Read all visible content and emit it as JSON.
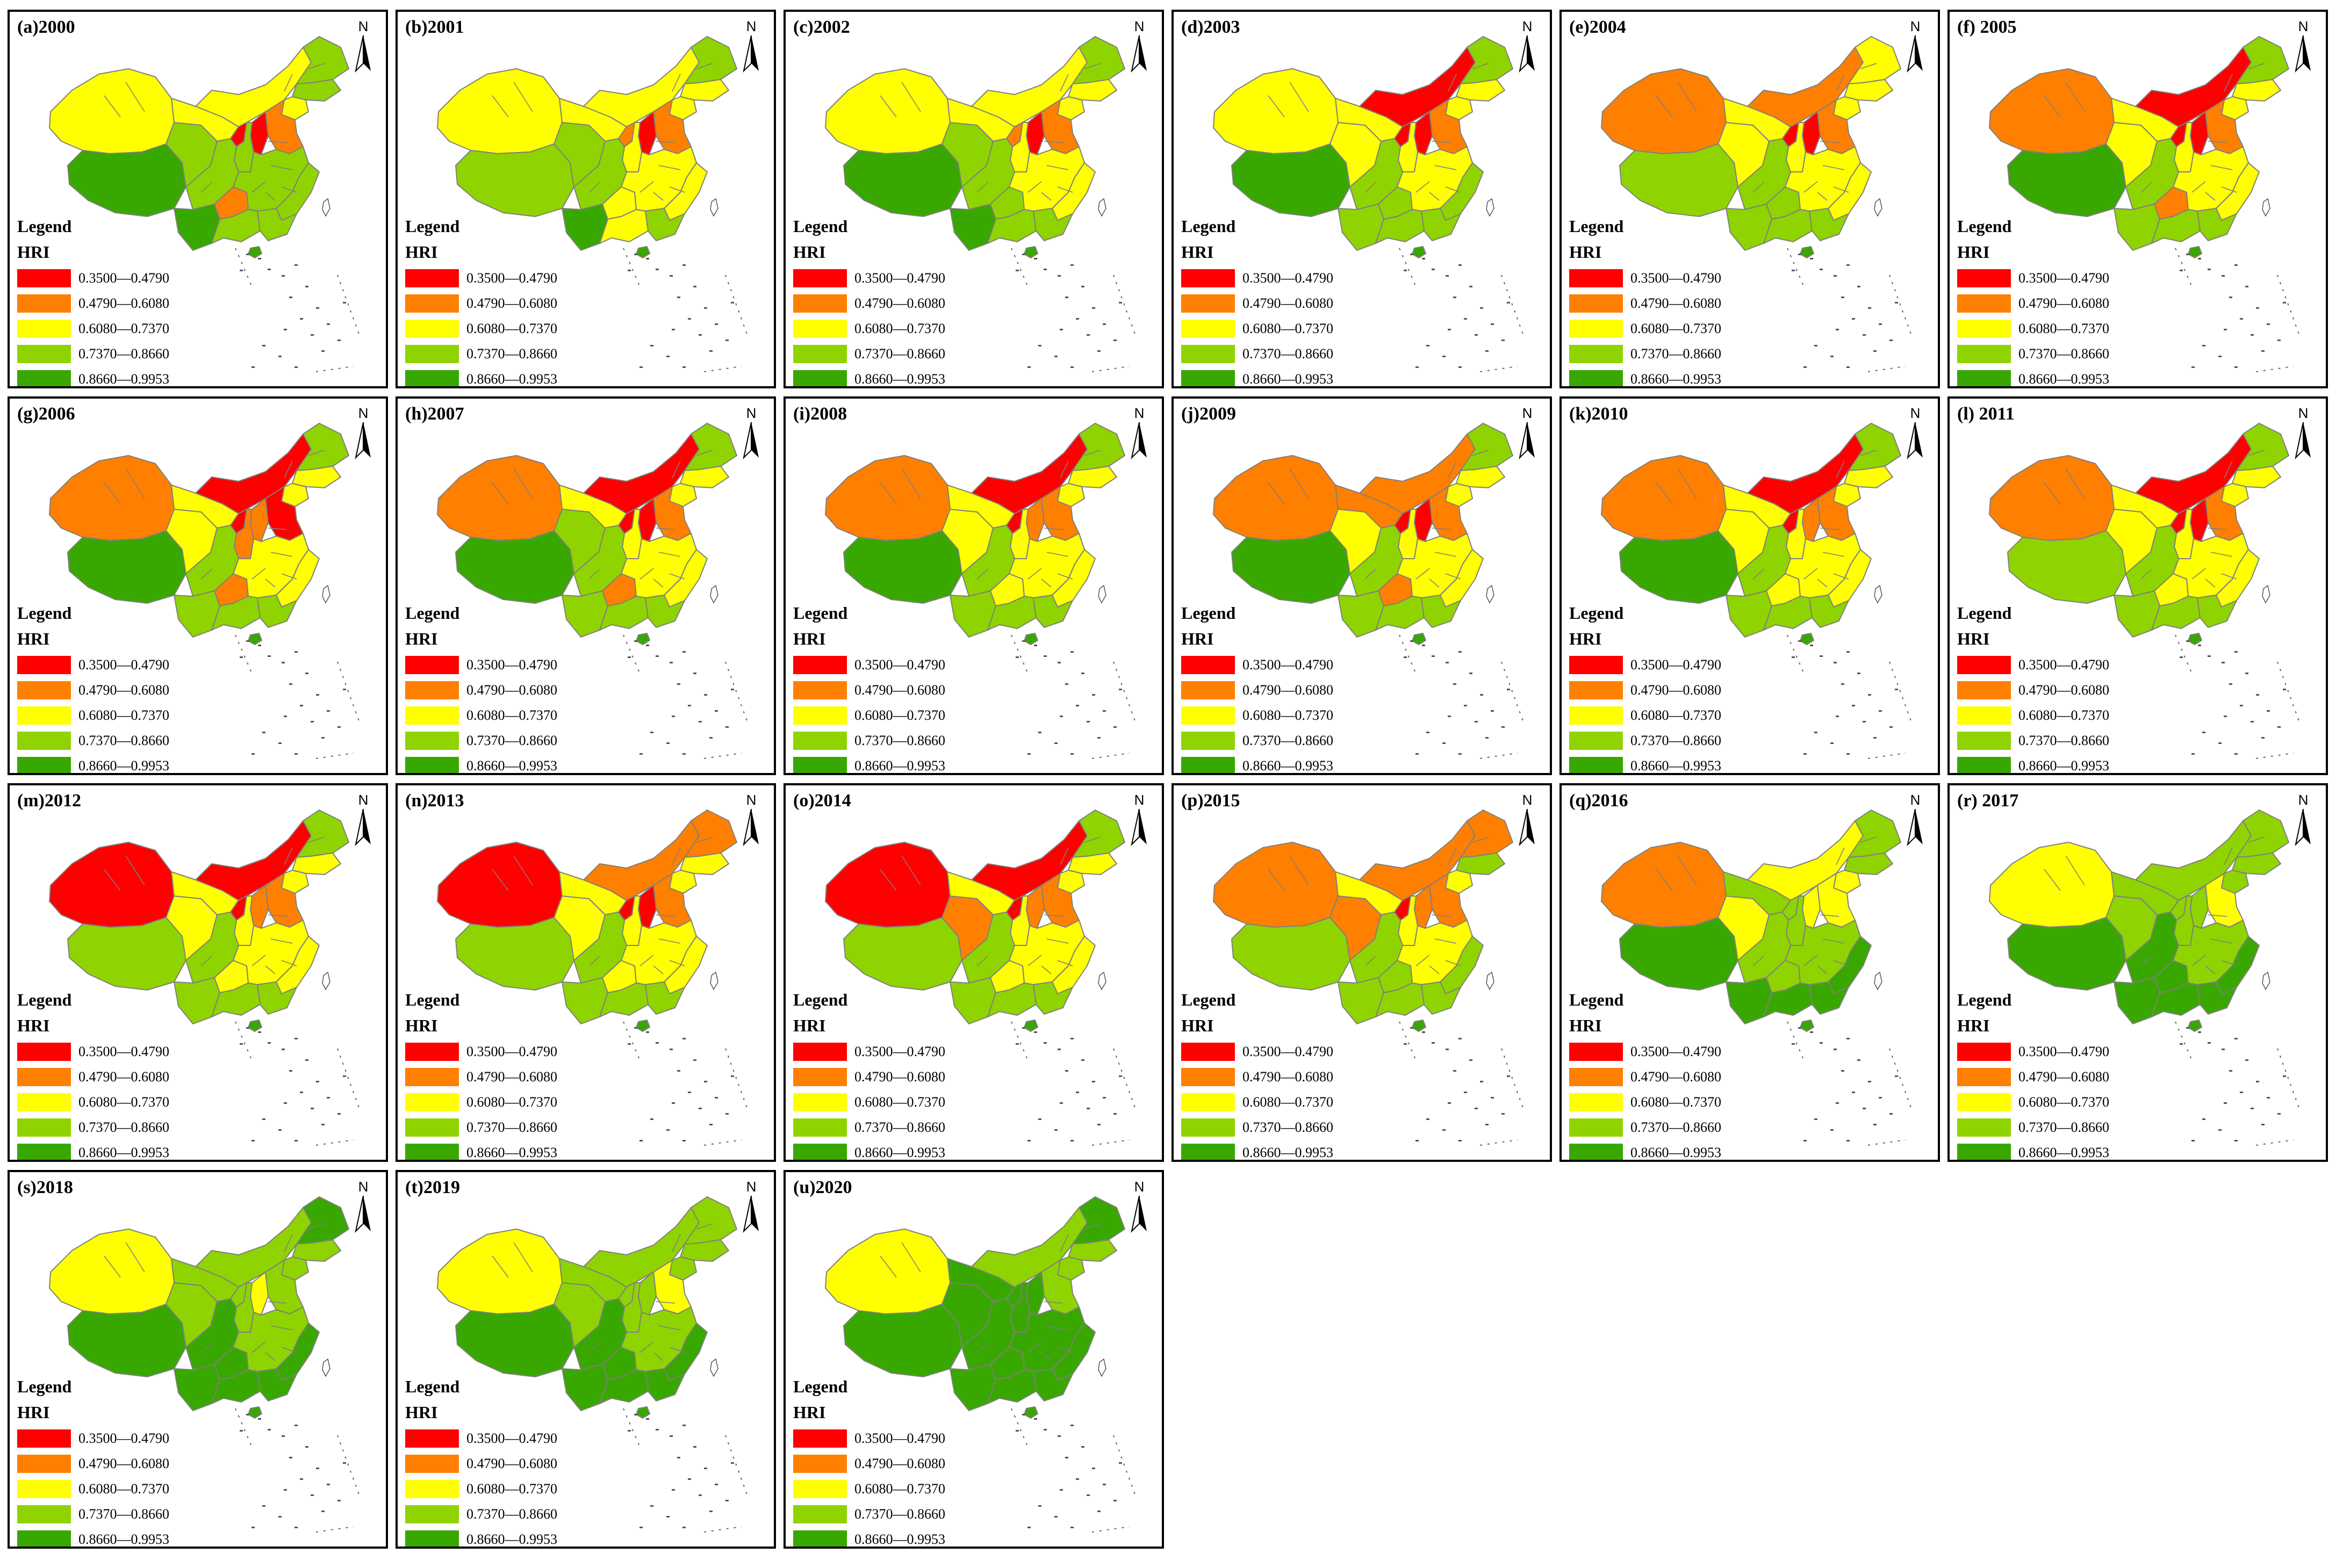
{
  "figure": {
    "legend_title": "Legend",
    "legend_subtitle": "HRI",
    "north_label": "N",
    "classes": [
      {
        "range": "0.3500—0.4790",
        "color": "#ff0000"
      },
      {
        "range": "0.4790—0.6080",
        "color": "#ff8000"
      },
      {
        "range": "0.6080—0.7370",
        "color": "#ffff00"
      },
      {
        "range": "0.7370—0.8660",
        "color": "#8fd400"
      },
      {
        "range": "0.8660—0.9953",
        "color": "#38a800"
      }
    ],
    "border_color": "#7f7f7f",
    "panels": [
      {
        "label": "(a)2000",
        "regions": {
          "xinjiang": 2,
          "tibet": 4,
          "qinghai": 3,
          "gansu": 2,
          "inner_mongolia": 2,
          "heilongjiang": 3,
          "jilin": 3,
          "liaoning": 2,
          "north_china": 1,
          "shanxi": 0,
          "ningxia": 0,
          "shaanxi": 3,
          "sichuan": 3,
          "yunnan": 4,
          "guizhou": 1,
          "central": 3,
          "southeast": 3,
          "guangxi": 3,
          "guangdong": 3,
          "hainan": 4
        }
      },
      {
        "label": "(b)2001",
        "regions": {
          "xinjiang": 2,
          "tibet": 3,
          "qinghai": 3,
          "gansu": 2,
          "inner_mongolia": 2,
          "heilongjiang": 3,
          "jilin": 2,
          "liaoning": 2,
          "north_china": 1,
          "shanxi": 0,
          "ningxia": 1,
          "shaanxi": 2,
          "sichuan": 3,
          "yunnan": 4,
          "guizhou": 2,
          "central": 2,
          "southeast": 2,
          "guangxi": 2,
          "guangdong": 3,
          "hainan": 4
        }
      },
      {
        "label": "(c)2002",
        "regions": {
          "xinjiang": 2,
          "tibet": 4,
          "qinghai": 3,
          "gansu": 2,
          "inner_mongolia": 2,
          "heilongjiang": 3,
          "jilin": 2,
          "liaoning": 2,
          "north_china": 1,
          "shanxi": 0,
          "ningxia": 1,
          "shaanxi": 2,
          "sichuan": 3,
          "yunnan": 4,
          "guizhou": 3,
          "central": 2,
          "southeast": 2,
          "guangxi": 3,
          "guangdong": 3,
          "hainan": 4
        }
      },
      {
        "label": "(d)2003",
        "regions": {
          "xinjiang": 2,
          "tibet": 4,
          "qinghai": 2,
          "gansu": 2,
          "inner_mongolia": 0,
          "heilongjiang": 3,
          "jilin": 2,
          "liaoning": 2,
          "north_china": 1,
          "shanxi": 0,
          "ningxia": 0,
          "shaanxi": 2,
          "sichuan": 3,
          "yunnan": 3,
          "guizhou": 3,
          "central": 2,
          "southeast": 3,
          "guangxi": 3,
          "guangdong": 3,
          "hainan": 4
        }
      },
      {
        "label": "(e)2004",
        "regions": {
          "xinjiang": 1,
          "tibet": 3,
          "qinghai": 2,
          "gansu": 2,
          "inner_mongolia": 1,
          "heilongjiang": 2,
          "jilin": 2,
          "liaoning": 2,
          "north_china": 1,
          "shanxi": 0,
          "ningxia": 0,
          "shaanxi": 2,
          "sichuan": 3,
          "yunnan": 3,
          "guizhou": 3,
          "central": 2,
          "southeast": 2,
          "guangxi": 3,
          "guangdong": 3,
          "hainan": 4
        }
      },
      {
        "label": "(f) 2005",
        "regions": {
          "xinjiang": 1,
          "tibet": 4,
          "qinghai": 2,
          "gansu": 2,
          "inner_mongolia": 0,
          "heilongjiang": 3,
          "jilin": 2,
          "liaoning": 2,
          "north_china": 1,
          "shanxi": 0,
          "ningxia": 0,
          "shaanxi": 2,
          "sichuan": 3,
          "yunnan": 3,
          "guizhou": 1,
          "central": 2,
          "southeast": 2,
          "guangxi": 3,
          "guangdong": 3,
          "hainan": 4
        }
      },
      {
        "label": "(g)2006",
        "regions": {
          "xinjiang": 1,
          "tibet": 4,
          "qinghai": 2,
          "gansu": 2,
          "inner_mongolia": 0,
          "heilongjiang": 3,
          "jilin": 2,
          "liaoning": 2,
          "north_china": 0,
          "shanxi": 1,
          "ningxia": 0,
          "shaanxi": 1,
          "sichuan": 3,
          "yunnan": 3,
          "guizhou": 1,
          "central": 2,
          "southeast": 2,
          "guangxi": 3,
          "guangdong": 3,
          "hainan": 4
        }
      },
      {
        "label": "(h)2007",
        "regions": {
          "xinjiang": 1,
          "tibet": 4,
          "qinghai": 3,
          "gansu": 2,
          "inner_mongolia": 0,
          "heilongjiang": 3,
          "jilin": 2,
          "liaoning": 2,
          "north_china": 1,
          "shanxi": 0,
          "ningxia": 0,
          "shaanxi": 2,
          "sichuan": 3,
          "yunnan": 3,
          "guizhou": 1,
          "central": 2,
          "southeast": 2,
          "guangxi": 3,
          "guangdong": 3,
          "hainan": 4
        }
      },
      {
        "label": "(i)2008",
        "regions": {
          "xinjiang": 1,
          "tibet": 4,
          "qinghai": 2,
          "gansu": 2,
          "inner_mongolia": 0,
          "heilongjiang": 3,
          "jilin": 2,
          "liaoning": 2,
          "north_china": 1,
          "shanxi": 1,
          "ningxia": 0,
          "shaanxi": 2,
          "sichuan": 3,
          "yunnan": 3,
          "guizhou": 2,
          "central": 2,
          "southeast": 2,
          "guangxi": 3,
          "guangdong": 3,
          "hainan": 4
        }
      },
      {
        "label": "(j)2009",
        "regions": {
          "xinjiang": 1,
          "tibet": 4,
          "qinghai": 2,
          "gansu": 1,
          "inner_mongolia": 1,
          "heilongjiang": 3,
          "jilin": 2,
          "liaoning": 2,
          "north_china": 1,
          "shanxi": 0,
          "ningxia": 0,
          "shaanxi": 2,
          "sichuan": 3,
          "yunnan": 3,
          "guizhou": 1,
          "central": 2,
          "southeast": 2,
          "guangxi": 3,
          "guangdong": 3,
          "hainan": 4
        }
      },
      {
        "label": "(k)2010",
        "regions": {
          "xinjiang": 1,
          "tibet": 4,
          "qinghai": 2,
          "gansu": 2,
          "inner_mongolia": 0,
          "heilongjiang": 3,
          "jilin": 2,
          "liaoning": 2,
          "north_china": 1,
          "shanxi": 1,
          "ningxia": 0,
          "shaanxi": 2,
          "sichuan": 3,
          "yunnan": 3,
          "guizhou": 2,
          "central": 2,
          "southeast": 2,
          "guangxi": 3,
          "guangdong": 3,
          "hainan": 4
        }
      },
      {
        "label": "(l) 2011",
        "regions": {
          "xinjiang": 1,
          "tibet": 3,
          "qinghai": 2,
          "gansu": 2,
          "inner_mongolia": 0,
          "heilongjiang": 3,
          "jilin": 2,
          "liaoning": 2,
          "north_china": 1,
          "shanxi": 0,
          "ningxia": 0,
          "shaanxi": 2,
          "sichuan": 3,
          "yunnan": 3,
          "guizhou": 2,
          "central": 2,
          "southeast": 2,
          "guangxi": 3,
          "guangdong": 3,
          "hainan": 4
        }
      },
      {
        "label": "(m)2012",
        "regions": {
          "xinjiang": 0,
          "tibet": 3,
          "qinghai": 2,
          "gansu": 2,
          "inner_mongolia": 0,
          "heilongjiang": 3,
          "jilin": 2,
          "liaoning": 2,
          "north_china": 1,
          "shanxi": 1,
          "ningxia": 0,
          "shaanxi": 2,
          "sichuan": 3,
          "yunnan": 3,
          "guizhou": 2,
          "central": 2,
          "southeast": 2,
          "guangxi": 3,
          "guangdong": 3,
          "hainan": 4
        }
      },
      {
        "label": "(n)2013",
        "regions": {
          "xinjiang": 0,
          "tibet": 3,
          "qinghai": 2,
          "gansu": 2,
          "inner_mongolia": 1,
          "heilongjiang": 1,
          "jilin": 2,
          "liaoning": 2,
          "north_china": 1,
          "shanxi": 0,
          "ningxia": 0,
          "shaanxi": 2,
          "sichuan": 3,
          "yunnan": 3,
          "guizhou": 2,
          "central": 2,
          "southeast": 2,
          "guangxi": 3,
          "guangdong": 3,
          "hainan": 4
        }
      },
      {
        "label": "(o)2014",
        "regions": {
          "xinjiang": 0,
          "tibet": 3,
          "qinghai": 1,
          "gansu": 2,
          "inner_mongolia": 0,
          "heilongjiang": 3,
          "jilin": 2,
          "liaoning": 2,
          "north_china": 1,
          "shanxi": 1,
          "ningxia": 0,
          "shaanxi": 2,
          "sichuan": 3,
          "yunnan": 3,
          "guizhou": 2,
          "central": 2,
          "southeast": 2,
          "guangxi": 3,
          "guangdong": 3,
          "hainan": 4
        }
      },
      {
        "label": "(p)2015",
        "regions": {
          "xinjiang": 1,
          "tibet": 3,
          "qinghai": 1,
          "gansu": 2,
          "inner_mongolia": 1,
          "heilongjiang": 1,
          "jilin": 3,
          "liaoning": 2,
          "north_china": 1,
          "shanxi": 1,
          "ningxia": 0,
          "shaanxi": 2,
          "sichuan": 3,
          "yunnan": 3,
          "guizhou": 3,
          "central": 2,
          "southeast": 3,
          "guangxi": 3,
          "guangdong": 3,
          "hainan": 4
        }
      },
      {
        "label": "(q)2016",
        "regions": {
          "xinjiang": 1,
          "tibet": 4,
          "qinghai": 2,
          "gansu": 3,
          "inner_mongolia": 2,
          "heilongjiang": 3,
          "jilin": 3,
          "liaoning": 2,
          "north_china": 2,
          "shanxi": 2,
          "ningxia": 3,
          "shaanxi": 3,
          "sichuan": 3,
          "yunnan": 4,
          "guizhou": 3,
          "central": 3,
          "southeast": 4,
          "guangxi": 4,
          "guangdong": 4,
          "hainan": 4
        }
      },
      {
        "label": "(r) 2017",
        "regions": {
          "xinjiang": 2,
          "tibet": 4,
          "qinghai": 3,
          "gansu": 3,
          "inner_mongolia": 3,
          "heilongjiang": 3,
          "jilin": 3,
          "liaoning": 3,
          "north_china": 2,
          "shanxi": 3,
          "ningxia": 3,
          "shaanxi": 3,
          "sichuan": 4,
          "yunnan": 4,
          "guizhou": 4,
          "central": 3,
          "southeast": 4,
          "guangxi": 4,
          "guangdong": 4,
          "hainan": 4
        }
      },
      {
        "label": "(s)2018",
        "regions": {
          "xinjiang": 2,
          "tibet": 4,
          "qinghai": 3,
          "gansu": 3,
          "inner_mongolia": 3,
          "heilongjiang": 4,
          "jilin": 3,
          "liaoning": 3,
          "north_china": 3,
          "shanxi": 2,
          "ningxia": 3,
          "shaanxi": 3,
          "sichuan": 4,
          "yunnan": 4,
          "guizhou": 4,
          "central": 3,
          "southeast": 4,
          "guangxi": 4,
          "guangdong": 4,
          "hainan": 4
        }
      },
      {
        "label": "(t)2019",
        "regions": {
          "xinjiang": 2,
          "tibet": 4,
          "qinghai": 3,
          "gansu": 3,
          "inner_mongolia": 3,
          "heilongjiang": 3,
          "jilin": 3,
          "liaoning": 3,
          "north_china": 2,
          "shanxi": 3,
          "ningxia": 3,
          "shaanxi": 3,
          "sichuan": 4,
          "yunnan": 4,
          "guizhou": 4,
          "central": 3,
          "southeast": 4,
          "guangxi": 4,
          "guangdong": 4,
          "hainan": 4
        }
      },
      {
        "label": "(u)2020",
        "regions": {
          "xinjiang": 2,
          "tibet": 4,
          "qinghai": 4,
          "gansu": 4,
          "inner_mongolia": 3,
          "heilongjiang": 4,
          "jilin": 3,
          "liaoning": 3,
          "north_china": 3,
          "shanxi": 4,
          "ningxia": 4,
          "shaanxi": 4,
          "sichuan": 4,
          "yunnan": 4,
          "guizhou": 4,
          "central": 4,
          "southeast": 4,
          "guangxi": 4,
          "guangdong": 4,
          "hainan": 4
        }
      }
    ]
  }
}
